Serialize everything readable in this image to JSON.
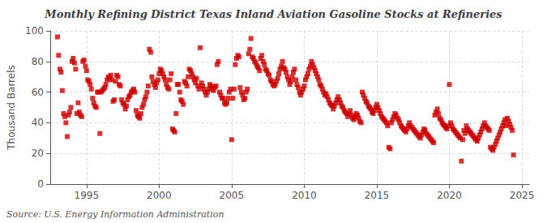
{
  "chart_data": {
    "type": "scatter",
    "title": "Monthly Refining District Texas Inland Aviation Gasoline Stocks at Refineries",
    "ylabel": "Thousand Barrels",
    "annotation": "Source: U.S. Energy Information Administration",
    "color": "#cc0000",
    "marker": "square",
    "grid": true,
    "xlim": [
      1992.5,
      2025.5
    ],
    "ylim": [
      0,
      100
    ],
    "xticks": [
      1995,
      2000,
      2005,
      2010,
      2015,
      2020,
      2025
    ],
    "yticks": [
      0,
      20,
      40,
      60,
      80,
      100
    ],
    "x": [
      1993.0,
      1993.08,
      1993.17,
      1993.25,
      1993.33,
      1993.42,
      1993.5,
      1993.58,
      1993.67,
      1993.75,
      1993.83,
      1993.92,
      1994.0,
      1994.08,
      1994.17,
      1994.25,
      1994.33,
      1994.42,
      1994.5,
      1994.58,
      1994.67,
      1994.75,
      1994.83,
      1994.92,
      1995.0,
      1995.08,
      1995.17,
      1995.25,
      1995.33,
      1995.42,
      1995.5,
      1995.58,
      1995.67,
      1995.75,
      1995.83,
      1995.92,
      1996.0,
      1996.08,
      1996.17,
      1996.25,
      1996.33,
      1996.42,
      1996.5,
      1996.58,
      1996.67,
      1996.75,
      1996.83,
      1996.92,
      1997.0,
      1997.08,
      1997.17,
      1997.25,
      1997.33,
      1997.42,
      1997.5,
      1997.58,
      1997.67,
      1997.75,
      1997.83,
      1997.92,
      1998.0,
      1998.08,
      1998.17,
      1998.25,
      1998.33,
      1998.42,
      1998.5,
      1998.58,
      1998.67,
      1998.75,
      1998.83,
      1998.92,
      1999.0,
      1999.08,
      1999.17,
      1999.25,
      1999.33,
      1999.42,
      1999.5,
      1999.58,
      1999.67,
      1999.75,
      1999.83,
      1999.92,
      2000.0,
      2000.08,
      2000.17,
      2000.25,
      2000.33,
      2000.42,
      2000.5,
      2000.58,
      2000.67,
      2000.75,
      2000.83,
      2000.92,
      2001.0,
      2001.08,
      2001.17,
      2001.25,
      2001.33,
      2001.42,
      2001.5,
      2001.58,
      2001.67,
      2001.75,
      2001.83,
      2001.92,
      2002.0,
      2002.08,
      2002.17,
      2002.25,
      2002.33,
      2002.42,
      2002.5,
      2002.58,
      2002.67,
      2002.75,
      2002.83,
      2002.92,
      2003.0,
      2003.08,
      2003.17,
      2003.25,
      2003.33,
      2003.42,
      2003.5,
      2003.58,
      2003.67,
      2003.75,
      2003.83,
      2003.92,
      2004.0,
      2004.08,
      2004.17,
      2004.25,
      2004.33,
      2004.42,
      2004.5,
      2004.58,
      2004.67,
      2004.75,
      2004.83,
      2004.92,
      2005.0,
      2005.08,
      2005.17,
      2005.25,
      2005.33,
      2005.42,
      2005.5,
      2005.58,
      2005.67,
      2005.75,
      2005.83,
      2005.92,
      2006.0,
      2006.08,
      2006.17,
      2006.25,
      2006.33,
      2006.42,
      2006.5,
      2006.58,
      2006.67,
      2006.75,
      2006.83,
      2006.92,
      2007.0,
      2007.08,
      2007.17,
      2007.25,
      2007.33,
      2007.42,
      2007.5,
      2007.58,
      2007.67,
      2007.75,
      2007.83,
      2007.92,
      2008.0,
      2008.08,
      2008.17,
      2008.25,
      2008.33,
      2008.42,
      2008.5,
      2008.58,
      2008.67,
      2008.75,
      2008.83,
      2008.92,
      2009.0,
      2009.08,
      2009.17,
      2009.25,
      2009.33,
      2009.42,
      2009.5,
      2009.58,
      2009.67,
      2009.75,
      2009.83,
      2009.92,
      2010.0,
      2010.08,
      2010.17,
      2010.25,
      2010.33,
      2010.42,
      2010.5,
      2010.58,
      2010.67,
      2010.75,
      2010.83,
      2010.92,
      2011.0,
      2011.08,
      2011.17,
      2011.25,
      2011.33,
      2011.42,
      2011.5,
      2011.58,
      2011.67,
      2011.75,
      2011.83,
      2011.92,
      2012.0,
      2012.08,
      2012.17,
      2012.25,
      2012.33,
      2012.42,
      2012.5,
      2012.58,
      2012.67,
      2012.75,
      2012.83,
      2012.92,
      2013.0,
      2013.08,
      2013.17,
      2013.25,
      2013.33,
      2013.42,
      2013.5,
      2013.58,
      2013.67,
      2013.75,
      2013.83,
      2013.92,
      2014.0,
      2014.08,
      2014.17,
      2014.25,
      2014.33,
      2014.42,
      2014.5,
      2014.58,
      2014.67,
      2014.75,
      2014.83,
      2014.92,
      2015.0,
      2015.08,
      2015.17,
      2015.25,
      2015.33,
      2015.42,
      2015.5,
      2015.58,
      2015.67,
      2015.75,
      2015.83,
      2015.92,
      2016.0,
      2016.08,
      2016.17,
      2016.25,
      2016.33,
      2016.42,
      2016.5,
      2016.58,
      2016.67,
      2016.75,
      2016.83,
      2016.92,
      2017.0,
      2017.08,
      2017.17,
      2017.25,
      2017.33,
      2017.42,
      2017.5,
      2017.58,
      2017.67,
      2017.75,
      2017.83,
      2017.92,
      2018.0,
      2018.08,
      2018.17,
      2018.25,
      2018.33,
      2018.42,
      2018.5,
      2018.58,
      2018.67,
      2018.75,
      2018.83,
      2018.92,
      2019.0,
      2019.08,
      2019.17,
      2019.25,
      2019.33,
      2019.42,
      2019.5,
      2019.58,
      2019.67,
      2019.75,
      2019.83,
      2019.92,
      2020.0,
      2020.08,
      2020.17,
      2020.25,
      2020.33,
      2020.42,
      2020.5,
      2020.58,
      2020.67,
      2020.75,
      2020.83,
      2020.92,
      2021.0,
      2021.08,
      2021.17,
      2021.25,
      2021.33,
      2021.42,
      2021.5,
      2021.58,
      2021.67,
      2021.75,
      2021.83,
      2021.92,
      2022.0,
      2022.08,
      2022.17,
      2022.25,
      2022.33,
      2022.42,
      2022.5,
      2022.58,
      2022.67,
      2022.75,
      2022.83,
      2022.92,
      2023.0,
      2023.08,
      2023.17,
      2023.25,
      2023.33,
      2023.42,
      2023.5,
      2023.58,
      2023.67,
      2023.75,
      2023.83,
      2023.92,
      2024.0,
      2024.08,
      2024.17,
      2024.25,
      2024.33,
      2024.42
    ],
    "values": [
      96,
      84,
      75,
      73,
      61,
      46,
      44,
      40,
      31,
      45,
      47,
      50,
      80,
      82,
      79,
      75,
      46,
      53,
      47,
      45,
      44,
      80,
      81,
      77,
      74,
      68,
      67,
      65,
      62,
      56,
      53,
      51,
      50,
      60,
      60,
      33,
      60,
      61,
      62,
      63,
      65,
      68,
      70,
      69,
      71,
      68,
      54,
      55,
      67,
      71,
      70,
      65,
      64,
      55,
      53,
      52,
      49,
      51,
      55,
      57,
      58,
      60,
      61,
      62,
      60,
      48,
      45,
      44,
      43,
      46,
      50,
      52,
      55,
      57,
      60,
      64,
      88,
      86,
      70,
      67,
      65,
      63,
      66,
      68,
      72,
      75,
      74,
      72,
      70,
      68,
      65,
      63,
      62,
      68,
      72,
      36,
      35,
      34,
      46,
      65,
      65,
      60,
      55,
      54,
      52,
      67,
      66,
      64,
      70,
      75,
      74,
      72,
      70,
      68,
      66,
      69,
      64,
      62,
      89,
      66,
      64,
      62,
      60,
      58,
      60,
      62,
      65,
      64,
      62,
      61,
      63,
      64,
      78,
      80,
      60,
      58,
      56,
      56,
      53,
      52,
      53,
      56,
      60,
      62,
      29,
      56,
      62,
      78,
      82,
      84,
      83,
      63,
      60,
      58,
      55,
      56,
      60,
      62,
      85,
      88,
      95,
      83,
      82,
      80,
      79,
      77,
      76,
      74,
      82,
      84,
      80,
      78,
      75,
      74,
      72,
      71,
      68,
      67,
      65,
      64,
      65,
      67,
      69,
      72,
      75,
      77,
      80,
      76,
      75,
      73,
      70,
      68,
      65,
      67,
      70,
      73,
      75,
      68,
      65,
      63,
      60,
      58,
      60,
      62,
      64,
      68,
      70,
      72,
      75,
      77,
      80,
      78,
      76,
      74,
      72,
      70,
      68,
      65,
      64,
      62,
      60,
      58,
      59,
      57,
      55,
      53,
      52,
      51,
      49,
      51,
      53,
      55,
      57,
      55,
      53,
      51,
      50,
      48,
      47,
      46,
      44,
      46,
      48,
      45,
      43,
      42,
      44,
      46,
      45,
      43,
      41,
      40,
      60,
      58,
      56,
      54,
      53,
      51,
      50,
      49,
      47,
      46,
      48,
      50,
      52,
      50,
      48,
      46,
      44,
      43,
      42,
      41,
      40,
      38,
      24,
      23,
      40,
      42,
      44,
      46,
      45,
      43,
      42,
      40,
      38,
      37,
      36,
      35,
      34,
      36,
      38,
      40,
      38,
      37,
      36,
      35,
      34,
      33,
      32,
      31,
      30,
      32,
      34,
      36,
      35,
      33,
      32,
      31,
      30,
      29,
      28,
      27,
      45,
      47,
      49,
      46,
      43,
      42,
      40,
      39,
      38,
      37,
      36,
      38,
      65,
      40,
      38,
      36,
      35,
      34,
      33,
      32,
      31,
      30,
      15,
      29,
      35,
      33,
      38,
      36,
      35,
      34,
      33,
      32,
      31,
      30,
      29,
      28,
      30,
      32,
      34,
      36,
      38,
      40,
      38,
      37,
      36,
      35,
      24,
      23,
      22,
      24,
      26,
      28,
      30,
      32,
      34,
      36,
      38,
      40,
      42,
      38,
      43,
      41,
      39,
      37,
      35,
      19
    ]
  }
}
